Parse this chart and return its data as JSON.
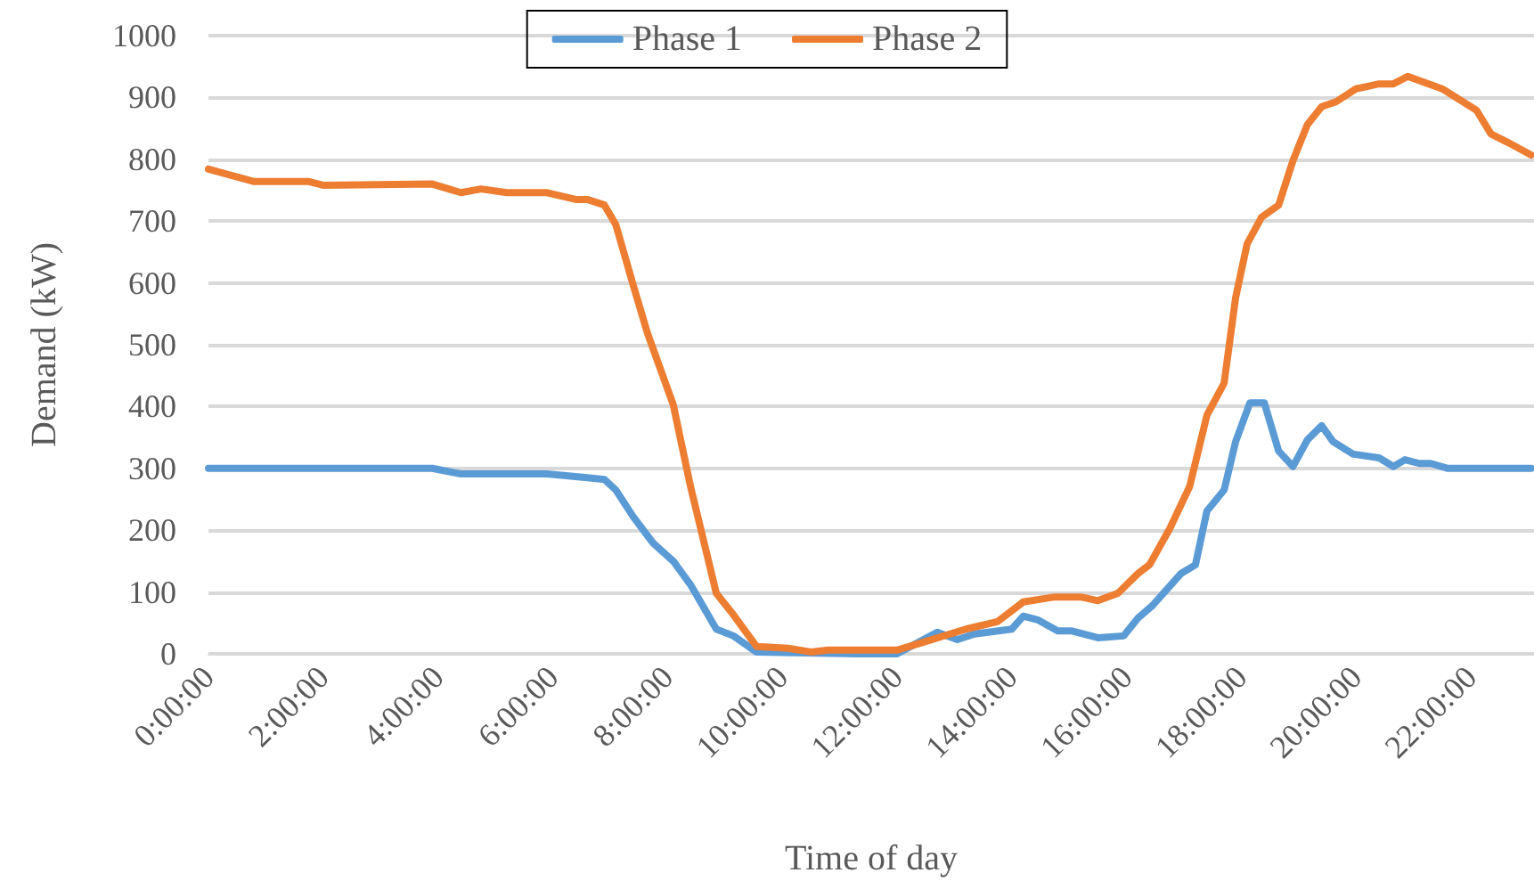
{
  "chart_data": {
    "type": "line",
    "xlabel": "Time of day",
    "ylabel": "Demand (kW)",
    "xlim": [
      0,
      23.1
    ],
    "xticks": [
      {
        "value": 0,
        "label": "0:00:00"
      },
      {
        "value": 2,
        "label": "2:00:00"
      },
      {
        "value": 4,
        "label": "4:00:00"
      },
      {
        "value": 6,
        "label": "6:00:00"
      },
      {
        "value": 8,
        "label": "8:00:00"
      },
      {
        "value": 10,
        "label": "10:00:00"
      },
      {
        "value": 12,
        "label": "12:00:00"
      },
      {
        "value": 14,
        "label": "14:00:00"
      },
      {
        "value": 16,
        "label": "16:00:00"
      },
      {
        "value": 18,
        "label": "18:00:00"
      },
      {
        "value": 20,
        "label": "20:00:00"
      },
      {
        "value": 22,
        "label": "22:00:00"
      }
    ],
    "ylim": [
      0,
      1000
    ],
    "yticks": [
      0,
      100,
      200,
      300,
      400,
      500,
      600,
      700,
      800,
      900,
      1000
    ],
    "grid": "y",
    "legend": "top",
    "marker": "none",
    "line_style": "solid",
    "series": [
      {
        "name": "Phase 1",
        "color": "#5b9bd5",
        "x": [
          0,
          3.9,
          4.4,
          5.2,
          5.9,
          6.6,
          6.9,
          7.1,
          7.4,
          7.75,
          8.1,
          8.4,
          8.85,
          9.15,
          9.55,
          11.3,
          12.0,
          12.7,
          13.05,
          13.35,
          14.0,
          14.2,
          14.45,
          14.8,
          15.05,
          15.5,
          15.95,
          16.2,
          16.45,
          16.95,
          17.2,
          17.4,
          17.7,
          17.9,
          18.15,
          18.4,
          18.65,
          18.9,
          19.15,
          19.4,
          19.6,
          19.95,
          20.4,
          20.65,
          20.85,
          21.1,
          21.3,
          21.6,
          23.05
        ],
        "values": [
          300,
          300,
          291,
          291,
          291,
          285,
          282,
          265,
          222,
          179,
          150,
          112,
          40,
          29,
          3,
          0,
          0,
          35,
          23,
          32,
          40,
          61,
          55,
          37,
          37,
          26,
          29,
          58,
          78,
          130,
          144,
          231,
          265,
          343,
          406,
          406,
          328,
          303,
          346,
          369,
          343,
          323,
          317,
          303,
          314,
          308,
          308,
          300,
          300
        ]
      },
      {
        "name": "Phase 2",
        "color": "#ed7d31",
        "x": [
          0,
          0.8,
          1.75,
          2.0,
          3.9,
          4.4,
          4.75,
          5.2,
          5.9,
          6.4,
          6.6,
          6.9,
          7.1,
          7.4,
          7.65,
          8.1,
          8.4,
          8.85,
          9.15,
          9.55,
          10.1,
          10.5,
          10.8,
          12.0,
          12.5,
          13.2,
          13.75,
          14.2,
          14.75,
          15.2,
          15.5,
          15.85,
          16.2,
          16.4,
          16.75,
          17.1,
          17.4,
          17.7,
          17.9,
          18.1,
          18.35,
          18.65,
          18.9,
          19.15,
          19.4,
          19.65,
          20.0,
          20.4,
          20.65,
          20.9,
          21.5,
          22.1,
          22.35,
          22.65,
          23.05
        ],
        "values": [
          784,
          764,
          764,
          758,
          760,
          746,
          752,
          746,
          746,
          735,
          735,
          726,
          694,
          597,
          519,
          403,
          271,
          98,
          63,
          12,
          9,
          3,
          6,
          6,
          20,
          40,
          52,
          84,
          92,
          92,
          86,
          98,
          130,
          144,
          202,
          271,
          386,
          438,
          576,
          663,
          706,
          726,
          798,
          856,
          885,
          893,
          914,
          922,
          922,
          934,
          914,
          879,
          841,
          827,
          807
        ]
      }
    ]
  }
}
